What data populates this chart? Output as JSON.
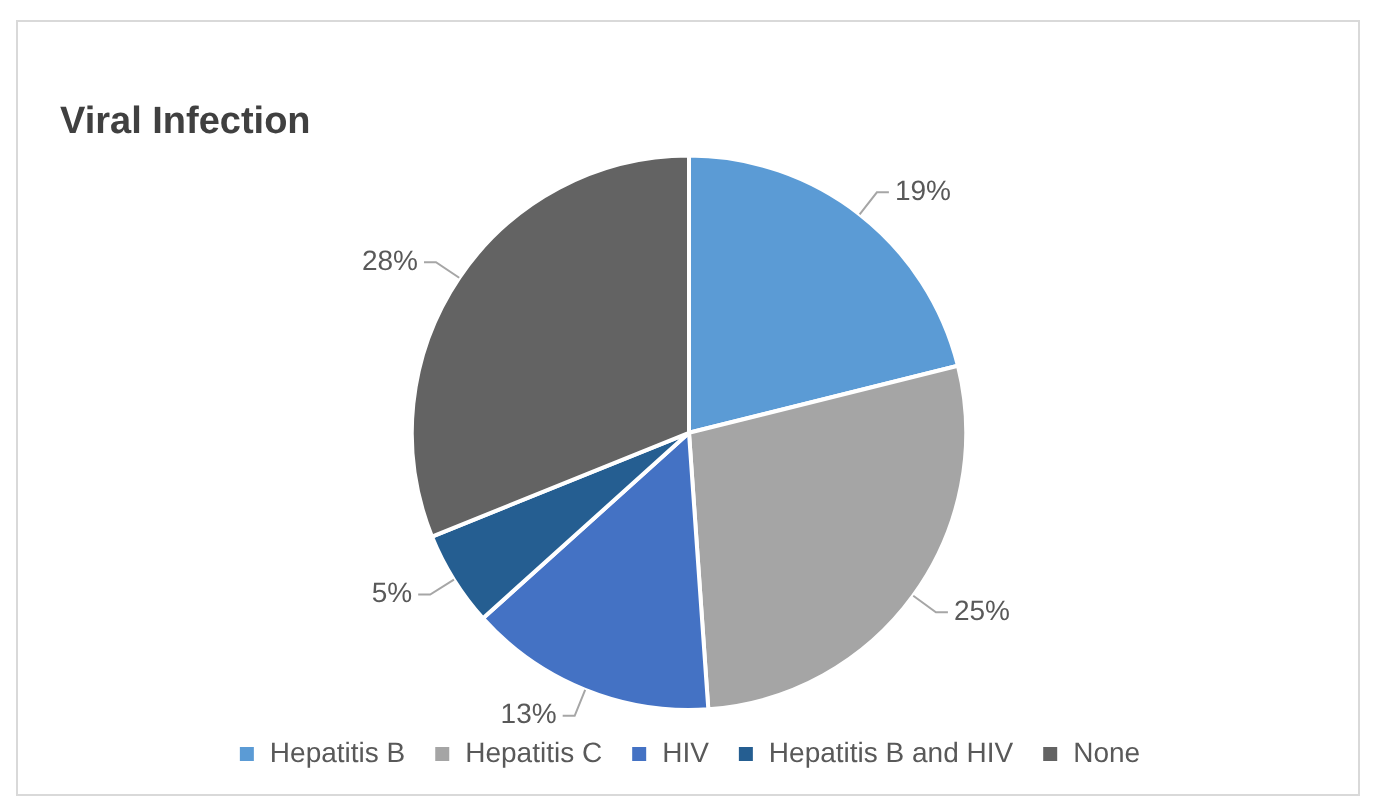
{
  "chart_data": {
    "type": "pie",
    "title": "Viral Infection",
    "categories": [
      "Hepatitis B",
      "Hepatitis C",
      "HIV",
      "Hepatitis B and HIV",
      "None"
    ],
    "values": [
      19,
      25,
      13,
      5,
      28
    ],
    "colors": [
      "#5b9bd5",
      "#a5a5a5",
      "#4472c4",
      "#255e91",
      "#636363"
    ],
    "value_labels": [
      "19%",
      "25%",
      "13%",
      "5%",
      "28%"
    ],
    "legend": "bottom"
  }
}
